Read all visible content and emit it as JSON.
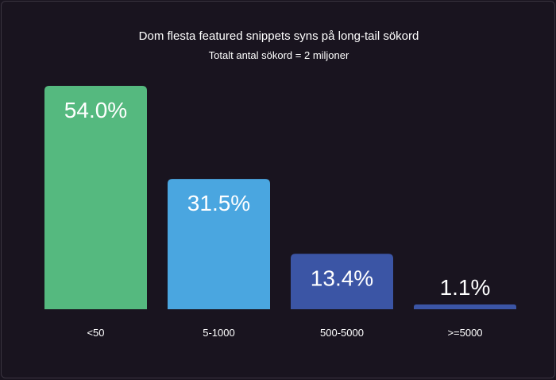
{
  "chart_data": {
    "type": "bar",
    "title": "Dom flesta featured snippets syns på long-tail sökord",
    "subtitle": "Totalt antal sökord = 2 miljoner",
    "categories": [
      "<50",
      "5-1000",
      "500-5000",
      ">=5000"
    ],
    "values": [
      54.0,
      31.5,
      13.4,
      1.1
    ],
    "value_labels": [
      "54.0%",
      "31.5%",
      "13.4%",
      "1.1%"
    ],
    "colors": [
      "#55b97f",
      "#4aa6e0",
      "#3b55a5",
      "#3b55a5"
    ],
    "xlabel": "",
    "ylabel": "",
    "ylim": [
      0,
      54.0
    ],
    "grid": false
  }
}
